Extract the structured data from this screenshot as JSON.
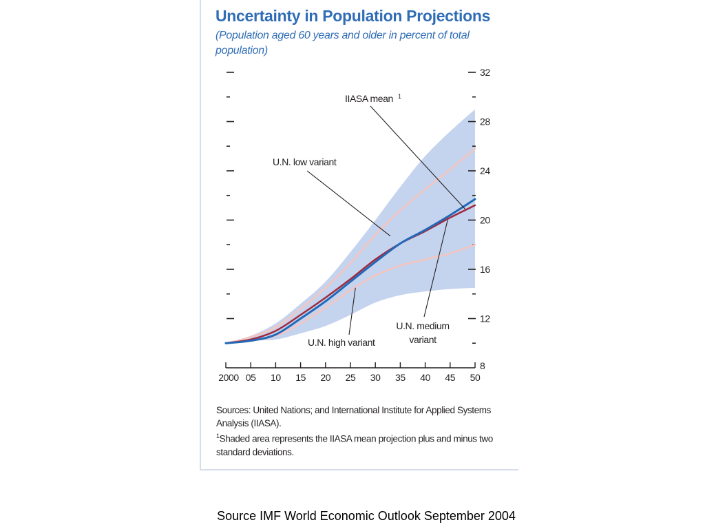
{
  "colors": {
    "title": "#2f6db5",
    "band": "#c4d3ee",
    "un_low": "#f6c5bf",
    "un_high": "#f6c5bf",
    "un_medium": "#a02a3c",
    "iiasa_mean": "#2368b8",
    "axis": "#231f20"
  },
  "chart_data": {
    "type": "line",
    "title": "Uncertainty in Population Projections",
    "subtitle": "(Population aged 60 years and older in percent of total population)",
    "xlabel": "",
    "ylabel": "",
    "xlim": [
      2000,
      2050
    ],
    "ylim": [
      8,
      32
    ],
    "x_tick_labels": [
      "2000",
      "05",
      "10",
      "15",
      "20",
      "25",
      "30",
      "35",
      "40",
      "45",
      "50"
    ],
    "x_tick_values": [
      2000,
      2005,
      2010,
      2015,
      2020,
      2025,
      2030,
      2035,
      2040,
      2045,
      2050
    ],
    "y_tick_labels": [
      "8",
      "12",
      "16",
      "20",
      "24",
      "28",
      "32"
    ],
    "y_tick_values": [
      8,
      12,
      16,
      20,
      24,
      28,
      32
    ],
    "x": [
      2000,
      2005,
      2010,
      2015,
      2020,
      2025,
      2030,
      2035,
      2040,
      2045,
      2050
    ],
    "band": {
      "upper": [
        10.0,
        10.6,
        11.6,
        13.2,
        15.0,
        17.4,
        20.0,
        22.7,
        25.2,
        27.2,
        29.0
      ],
      "lower": [
        10.0,
        10.2,
        10.3,
        10.8,
        11.4,
        12.3,
        13.3,
        13.9,
        14.2,
        14.4,
        14.5
      ]
    },
    "series": [
      {
        "name": "U.N. low variant",
        "values": [
          10.0,
          10.5,
          11.3,
          12.8,
          14.5,
          16.5,
          18.8,
          20.8,
          22.5,
          24.1,
          25.8
        ]
      },
      {
        "name": "U.N. high variant",
        "values": [
          10.0,
          10.2,
          10.6,
          11.6,
          12.9,
          14.3,
          15.5,
          16.3,
          16.8,
          17.3,
          18.0
        ]
      },
      {
        "name": "U.N. medium variant",
        "values": [
          10.0,
          10.3,
          11.0,
          12.3,
          13.7,
          15.2,
          16.8,
          18.1,
          19.1,
          20.2,
          21.2
        ]
      },
      {
        "name": "IIASA mean",
        "values": [
          10.0,
          10.2,
          10.7,
          12.0,
          13.4,
          15.0,
          16.6,
          18.1,
          19.2,
          20.4,
          21.7
        ]
      }
    ],
    "annotations": [
      {
        "text": "IIASA mean",
        "sup": "1",
        "x": 2048,
        "y": 20.9
      },
      {
        "text": "U.N. low variant",
        "x": 2033,
        "y": 18.7
      },
      {
        "text": "U.N. high variant",
        "x": 2026,
        "y": 14.5
      },
      {
        "text": "U.N. medium",
        "text2": "variant",
        "x": 2044.5,
        "y": 20.0
      }
    ]
  },
  "sources_text": "Sources: United Nations; and International Institute for Applied Systems Analysis (IIASA).",
  "footnote_marker": "1",
  "footnote_text": "Shaded area represents the IIASA mean projection plus and minus two standard deviations.",
  "caption": "Source IMF World Economic Outlook September 2004"
}
